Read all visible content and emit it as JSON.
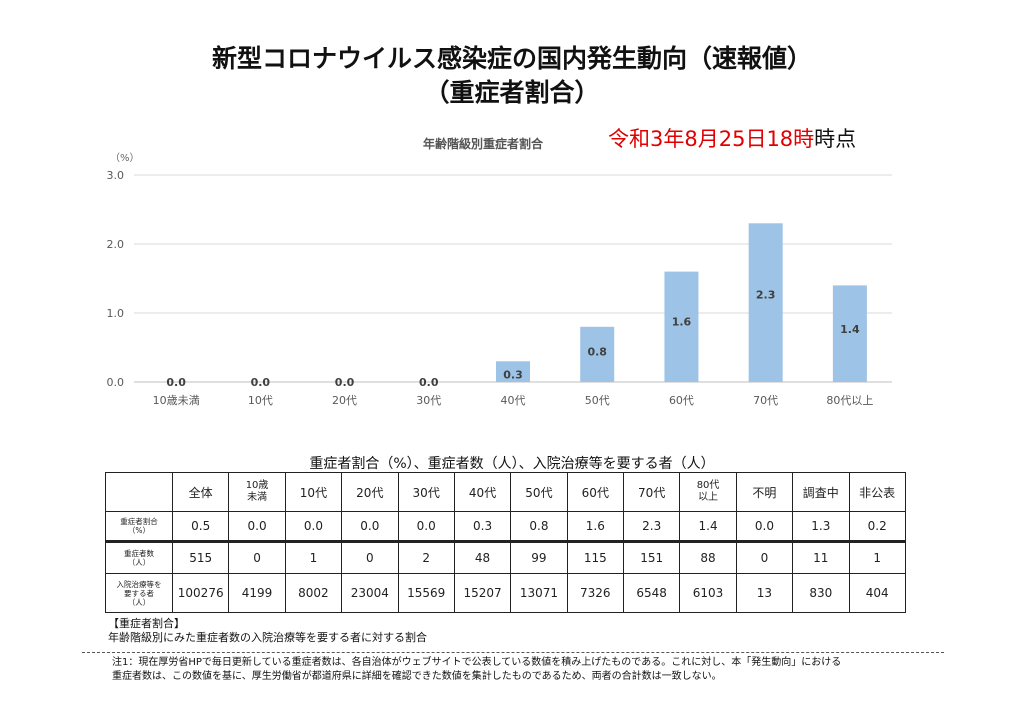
{
  "title": {
    "line1": "新型コロナウイルス感染症の国内発生動向（速報値）",
    "line2": "（重症者割合）"
  },
  "chart_caption": "年齢階級別重症者割合",
  "timestamp": {
    "main": "令和3年8月25日18時",
    "tail": "時点"
  },
  "chart_data": {
    "type": "bar",
    "unit_label": "（%）",
    "categories": [
      "10歳未満",
      "10代",
      "20代",
      "30代",
      "40代",
      "50代",
      "60代",
      "70代",
      "80代以上"
    ],
    "values": [
      0.0,
      0.0,
      0.0,
      0.0,
      0.3,
      0.8,
      1.6,
      2.3,
      1.4
    ],
    "data_labels": [
      "0.0",
      "0.0",
      "0.0",
      "0.0",
      "0.3",
      "0.8",
      "1.6",
      "2.3",
      "1.4"
    ],
    "ylim": [
      0,
      3.0
    ],
    "yticks": [
      "0.0",
      "1.0",
      "2.0",
      "3.0"
    ],
    "grid": true,
    "bar_color": "#9dc3e6"
  },
  "table": {
    "caption": "重症者割合（%）、重症者数（人）、入院治療等を要する者（人）",
    "headers": [
      [
        "全体"
      ],
      [
        "10歳",
        "未満"
      ],
      [
        "10代"
      ],
      [
        "20代"
      ],
      [
        "30代"
      ],
      [
        "40代"
      ],
      [
        "50代"
      ],
      [
        "60代"
      ],
      [
        "70代"
      ],
      [
        "80代",
        "以上"
      ],
      [
        "不明"
      ],
      [
        "調査中"
      ],
      [
        "非公表"
      ]
    ],
    "rows": [
      {
        "label": [
          "重症者割合",
          "（%）"
        ],
        "values": [
          "0.5",
          "0.0",
          "0.0",
          "0.0",
          "0.0",
          "0.3",
          "0.8",
          "1.6",
          "2.3",
          "1.4",
          "0.0",
          "1.3",
          "0.2"
        ]
      },
      {
        "label": [
          "重症者数",
          "（人）"
        ],
        "values": [
          "515",
          "0",
          "1",
          "0",
          "2",
          "48",
          "99",
          "115",
          "151",
          "88",
          "0",
          "11",
          "1"
        ]
      },
      {
        "label": [
          "入院治療等を",
          "要する者",
          "（人）"
        ],
        "values": [
          "100276",
          "4199",
          "8002",
          "23004",
          "15569",
          "15207",
          "13071",
          "7326",
          "6548",
          "6103",
          "13",
          "830",
          "404"
        ]
      }
    ]
  },
  "note": {
    "heading": "【重症者割合】",
    "text": "年齢階級別にみた重症者数の入院治療等を要する者に対する割合"
  },
  "footnote": {
    "line1": "注1：現在厚労省HPで毎日更新している重症者数は、各自治体がウェブサイトで公表している数値を積み上げたものである。これに対し、本「発生動向」における",
    "line2": "重症者数は、この数値を基に、厚生労働省が都道府県に詳細を確認できた数値を集計したものであるため、両者の合計数は一致しない。"
  }
}
